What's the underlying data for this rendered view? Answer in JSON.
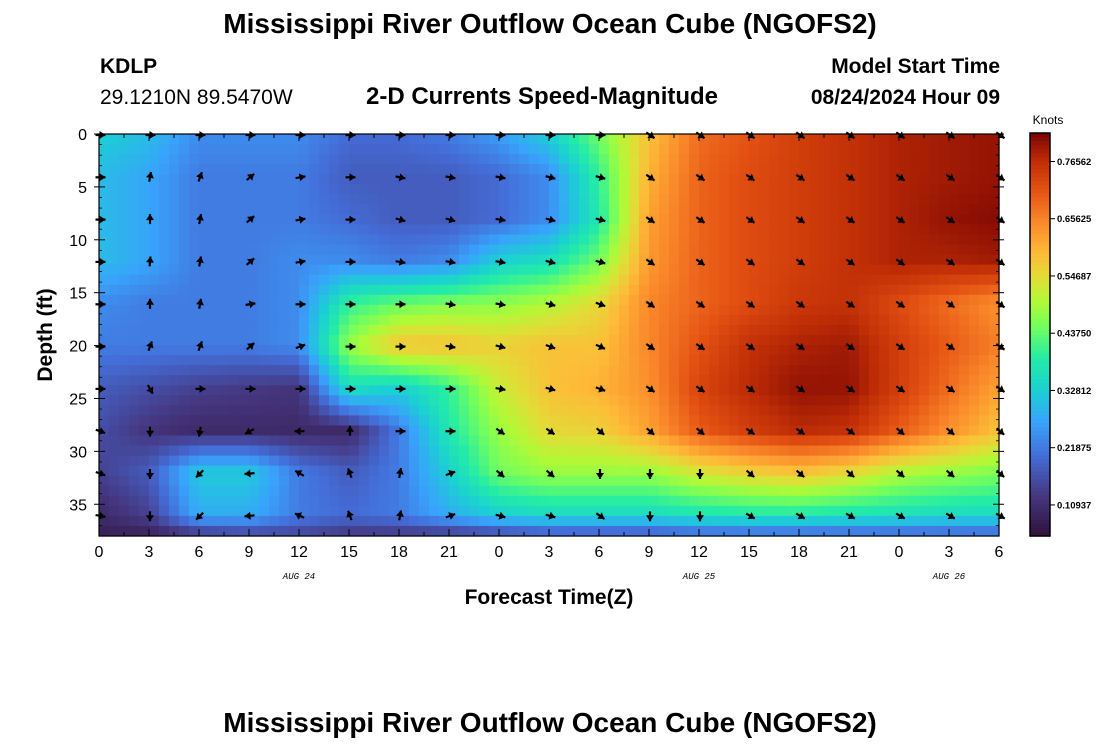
{
  "header": {
    "title": "Mississippi River Outflow Ocean Cube (NGOFS2)",
    "station_id": "KDLP",
    "station_coords": "29.1210N  89.5470W",
    "start_label": "Model Start Time",
    "start_time": "08/24/2024 Hour 09"
  },
  "footer": {
    "title_repeat": "Mississippi River Outflow Ocean Cube (NGOFS2)"
  },
  "chart_data": {
    "type": "heatmap",
    "title": "2-D Currents Speed-Magnitude",
    "xlabel": "Forecast Time(Z)",
    "ylabel": "Depth (ft)",
    "x_tick_labels": [
      "0",
      "3",
      "6",
      "9",
      "12",
      "15",
      "18",
      "21",
      "0",
      "3",
      "6",
      "9",
      "12",
      "15",
      "18",
      "21",
      "0",
      "3",
      "6"
    ],
    "date_labels": [
      {
        "label": "AUG 24",
        "at_tick": 4
      },
      {
        "label": "AUG 25",
        "at_tick": 12
      },
      {
        "label": "AUG 26",
        "at_tick": 17
      }
    ],
    "xlim": [
      0,
      54
    ],
    "ylim": [
      0,
      38
    ],
    "y_ticks": [
      0,
      5,
      10,
      15,
      20,
      25,
      30,
      35
    ],
    "y_inverted": true,
    "colorbar": {
      "label": "Knots",
      "range": [
        0.05,
        0.82
      ],
      "tick_values": [
        0.10937,
        0.21875,
        0.32812,
        0.4375,
        0.54687,
        0.65625,
        0.76562
      ],
      "tick_labels": [
        "0.10937",
        "0.21875",
        "0.32812",
        "0.43750",
        "0.54687",
        "0.65625",
        "0.76562"
      ]
    },
    "arrow_depths": [
      0,
      4,
      8,
      12,
      16,
      20,
      24,
      28,
      32,
      36
    ],
    "arrow_step_hours": 3,
    "arrow_columns": 19,
    "speed_note": "speed field approximated from colors",
    "speed_field": {
      "x_hours": [
        0,
        3,
        6,
        9,
        12,
        15,
        18,
        21,
        24,
        27,
        30,
        33,
        36,
        39,
        42,
        45,
        48,
        51,
        54
      ],
      "depths_ft": [
        0,
        4,
        8,
        12,
        16,
        20,
        24,
        28,
        32,
        36,
        38
      ],
      "values": [
        [
          0.33,
          0.3,
          0.24,
          0.24,
          0.24,
          0.2,
          0.2,
          0.22,
          0.26,
          0.33,
          0.45,
          0.58,
          0.68,
          0.71,
          0.74,
          0.76,
          0.78,
          0.79,
          0.8
        ],
        [
          0.3,
          0.27,
          0.22,
          0.22,
          0.22,
          0.18,
          0.18,
          0.18,
          0.2,
          0.24,
          0.4,
          0.6,
          0.69,
          0.72,
          0.74,
          0.76,
          0.78,
          0.79,
          0.8
        ],
        [
          0.3,
          0.27,
          0.22,
          0.22,
          0.22,
          0.2,
          0.18,
          0.18,
          0.2,
          0.24,
          0.38,
          0.62,
          0.69,
          0.72,
          0.74,
          0.76,
          0.78,
          0.8,
          0.81
        ],
        [
          0.3,
          0.27,
          0.22,
          0.22,
          0.24,
          0.24,
          0.22,
          0.24,
          0.33,
          0.36,
          0.45,
          0.63,
          0.69,
          0.72,
          0.74,
          0.76,
          0.78,
          0.78,
          0.79
        ],
        [
          0.24,
          0.22,
          0.22,
          0.22,
          0.24,
          0.4,
          0.44,
          0.46,
          0.47,
          0.5,
          0.55,
          0.65,
          0.69,
          0.72,
          0.75,
          0.76,
          0.72,
          0.68,
          0.64
        ],
        [
          0.22,
          0.22,
          0.22,
          0.22,
          0.24,
          0.48,
          0.58,
          0.58,
          0.56,
          0.58,
          0.58,
          0.65,
          0.71,
          0.76,
          0.78,
          0.79,
          0.74,
          0.7,
          0.66
        ],
        [
          0.18,
          0.16,
          0.14,
          0.13,
          0.12,
          0.36,
          0.33,
          0.4,
          0.52,
          0.58,
          0.6,
          0.64,
          0.73,
          0.77,
          0.8,
          0.8,
          0.74,
          0.68,
          0.62
        ],
        [
          0.16,
          0.12,
          0.1,
          0.1,
          0.1,
          0.1,
          0.22,
          0.38,
          0.48,
          0.55,
          0.56,
          0.62,
          0.7,
          0.74,
          0.77,
          0.76,
          0.7,
          0.64,
          0.58
        ],
        [
          0.14,
          0.18,
          0.32,
          0.32,
          0.22,
          0.18,
          0.22,
          0.33,
          0.45,
          0.48,
          0.48,
          0.48,
          0.53,
          0.56,
          0.58,
          0.55,
          0.5,
          0.48,
          0.46
        ],
        [
          0.1,
          0.14,
          0.28,
          0.28,
          0.22,
          0.2,
          0.22,
          0.28,
          0.33,
          0.35,
          0.35,
          0.35,
          0.37,
          0.38,
          0.38,
          0.37,
          0.36,
          0.35,
          0.35
        ],
        [
          0.08,
          0.08,
          0.12,
          0.14,
          0.14,
          0.12,
          0.12,
          0.12,
          0.14,
          0.16,
          0.16,
          0.16,
          0.18,
          0.18,
          0.18,
          0.18,
          0.18,
          0.18,
          0.18
        ]
      ]
    },
    "arrow_angles_deg": [
      [
        0,
        0,
        0,
        0,
        0,
        0,
        0,
        0,
        0,
        0,
        0,
        35,
        35,
        35,
        35,
        35,
        35,
        35,
        35
      ],
      [
        0,
        -80,
        -70,
        -40,
        -10,
        0,
        10,
        10,
        10,
        15,
        15,
        35,
        35,
        35,
        35,
        35,
        35,
        35,
        35
      ],
      [
        0,
        -90,
        -80,
        -40,
        -10,
        0,
        15,
        15,
        10,
        15,
        15,
        35,
        35,
        35,
        35,
        35,
        35,
        35,
        35
      ],
      [
        0,
        -85,
        -80,
        -40,
        -10,
        0,
        10,
        10,
        10,
        15,
        15,
        35,
        35,
        35,
        35,
        35,
        35,
        35,
        35
      ],
      [
        0,
        -90,
        -80,
        -10,
        0,
        0,
        0,
        10,
        10,
        15,
        20,
        35,
        35,
        35,
        35,
        35,
        35,
        35,
        35
      ],
      [
        0,
        -70,
        -70,
        -40,
        -20,
        0,
        0,
        10,
        15,
        20,
        25,
        35,
        35,
        35,
        35,
        35,
        35,
        35,
        35
      ],
      [
        0,
        60,
        0,
        0,
        0,
        0,
        0,
        0,
        10,
        15,
        20,
        35,
        35,
        35,
        35,
        35,
        35,
        35,
        35
      ],
      [
        20,
        90,
        100,
        150,
        180,
        -90,
        0,
        0,
        35,
        35,
        40,
        40,
        40,
        35,
        35,
        35,
        40,
        40,
        40
      ],
      [
        20,
        90,
        135,
        175,
        -150,
        -110,
        -80,
        -20,
        40,
        40,
        90,
        90,
        90,
        40,
        40,
        40,
        40,
        40,
        40
      ],
      [
        10,
        90,
        135,
        175,
        -155,
        -110,
        -80,
        -20,
        15,
        15,
        35,
        90,
        90,
        30,
        30,
        30,
        30,
        30,
        30
      ]
    ]
  }
}
